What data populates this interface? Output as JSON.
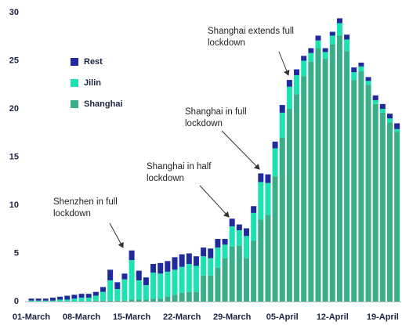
{
  "chart_data": {
    "type": "stacked_bar",
    "categories": [
      "01-March",
      null,
      null,
      null,
      null,
      null,
      null,
      "08-March",
      null,
      null,
      null,
      null,
      null,
      null,
      "15-March",
      null,
      null,
      null,
      null,
      null,
      null,
      "22-March",
      null,
      null,
      null,
      null,
      null,
      null,
      "29-March",
      null,
      null,
      null,
      null,
      null,
      null,
      "05-April",
      null,
      null,
      null,
      null,
      null,
      null,
      "12-April",
      null,
      null,
      null,
      null,
      null,
      null,
      "19-April",
      null,
      null
    ],
    "series": [
      {
        "name": "Shanghai",
        "color": "#3aae88",
        "values": [
          0,
          0,
          0,
          0,
          0,
          0,
          0,
          0,
          0,
          0.1,
          0.1,
          0.1,
          0.1,
          0.1,
          0.2,
          0.2,
          0.2,
          0.3,
          0.3,
          0.5,
          0.7,
          0.9,
          1.0,
          1.0,
          2.7,
          2.7,
          3.5,
          4.5,
          5.7,
          5.8,
          4.5,
          6.3,
          8.5,
          9.0,
          13.0,
          17.0,
          20.0,
          21.5,
          23.4,
          24.9,
          26.3,
          25.2,
          26.7,
          27.6,
          26.0,
          23.0,
          23.9,
          22.5,
          20.5,
          19.6,
          18.6,
          17.6
        ]
      },
      {
        "name": "Jilin",
        "color": "#1de3b2",
        "values": [
          0.1,
          0.1,
          0.1,
          0.1,
          0.2,
          0.2,
          0.3,
          0.4,
          0.4,
          0.5,
          0.9,
          2.1,
          1.2,
          2.2,
          4.1,
          2.0,
          1.5,
          2.7,
          2.6,
          2.6,
          2.6,
          2.7,
          2.9,
          2.7,
          2.0,
          1.8,
          2.1,
          1.4,
          2.1,
          1.6,
          2.3,
          2.9,
          3.9,
          3.3,
          2.9,
          2.6,
          2.3,
          2.0,
          1.6,
          0.9,
          0.8,
          0.7,
          0.9,
          1.3,
          1.2,
          0.8,
          0.5,
          0.4,
          0.4,
          0.4,
          0.4,
          0.3
        ]
      },
      {
        "name": "Rest",
        "color": "#1f2a9c",
        "values": [
          0.2,
          0.2,
          0.2,
          0.3,
          0.3,
          0.4,
          0.4,
          0.4,
          0.4,
          0.4,
          0.5,
          1.1,
          0.7,
          0.6,
          1.0,
          1.0,
          0.8,
          0.9,
          1.1,
          1.1,
          1.3,
          1.3,
          1.1,
          1.0,
          0.9,
          1.0,
          0.9,
          0.6,
          0.8,
          0.6,
          0.8,
          0.7,
          0.9,
          0.9,
          0.7,
          0.8,
          0.7,
          0.6,
          0.5,
          0.5,
          0.5,
          0.4,
          0.4,
          0.5,
          0.5,
          0.5,
          0.4,
          0.4,
          0.5,
          0.5,
          0.5,
          0.6
        ]
      }
    ],
    "ylim": [
      0,
      30
    ],
    "yticks": [
      0,
      5,
      10,
      15,
      20,
      25,
      30
    ],
    "grid": false,
    "annotations": [
      {
        "lines": [
          "Shenzhen in full",
          "lockdown"
        ]
      },
      {
        "lines": [
          "Shanghai in half",
          "lockdown"
        ]
      },
      {
        "lines": [
          "Shanghai in full",
          "lockdown"
        ]
      },
      {
        "lines": [
          "Shanghai extends full",
          "lockdown"
        ]
      }
    ]
  }
}
